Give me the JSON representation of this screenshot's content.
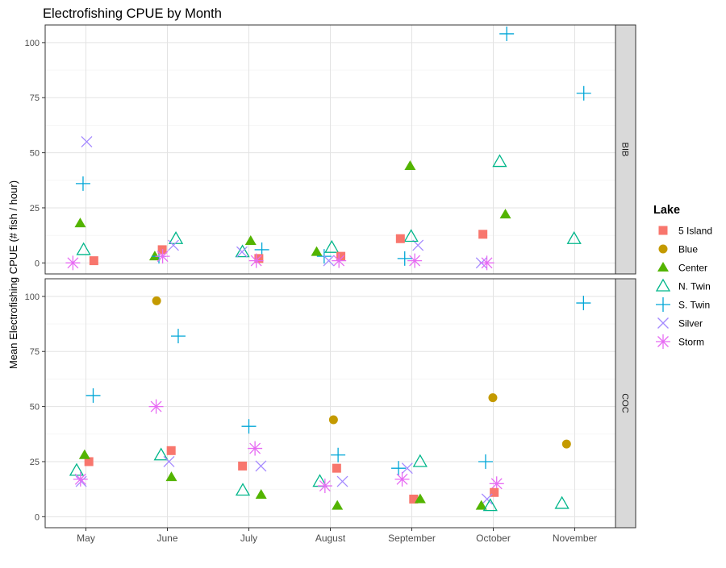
{
  "chart_data": {
    "type": "scatter",
    "title": "Electrofishing CPUE by Month",
    "xlabel": "",
    "ylabel": "Mean Electrofishing CPUE (# fish / hour)",
    "categories": [
      "May",
      "June",
      "July",
      "August",
      "September",
      "October",
      "November"
    ],
    "ylim": [
      -5,
      108
    ],
    "yticks": [
      0,
      25,
      50,
      75,
      100
    ],
    "grid": true,
    "legend": {
      "title": "Lake",
      "position": "right"
    },
    "facets": [
      "BIB",
      "COC"
    ],
    "series": [
      {
        "name": "5 Island",
        "shape": "square",
        "color": "#F8766D"
      },
      {
        "name": "Blue",
        "shape": "circle",
        "color": "#C49A00"
      },
      {
        "name": "Center",
        "shape": "triangle-filled",
        "color": "#53B400"
      },
      {
        "name": "N. Twin",
        "shape": "triangle-open",
        "color": "#00B68A"
      },
      {
        "name": "S. Twin",
        "shape": "plus",
        "color": "#00A6D7"
      },
      {
        "name": "Silver",
        "shape": "cross",
        "color": "#A58AFF"
      },
      {
        "name": "Storm",
        "shape": "asterisk",
        "color": "#E76BF3"
      }
    ],
    "points": {
      "BIB": [
        {
          "series": "Center",
          "x": "May",
          "y": 18
        },
        {
          "series": "N. Twin",
          "x": "May",
          "y": 6
        },
        {
          "series": "S. Twin",
          "x": "May",
          "y": 36
        },
        {
          "series": "Silver",
          "x": "May",
          "y": 55
        },
        {
          "series": "Storm",
          "x": "May",
          "y": 0
        },
        {
          "series": "5 Island",
          "x": "May",
          "y": 1
        },
        {
          "series": "N. Twin",
          "x": "June",
          "y": 11
        },
        {
          "series": "Center",
          "x": "June",
          "y": 3
        },
        {
          "series": "S. Twin",
          "x": "June",
          "y": 3
        },
        {
          "series": "Silver",
          "x": "June",
          "y": 8
        },
        {
          "series": "5 Island",
          "x": "June",
          "y": 6
        },
        {
          "series": "Storm",
          "x": "June",
          "y": 3
        },
        {
          "series": "Center",
          "x": "July",
          "y": 10
        },
        {
          "series": "N. Twin",
          "x": "July",
          "y": 5
        },
        {
          "series": "S. Twin",
          "x": "July",
          "y": 6
        },
        {
          "series": "5 Island",
          "x": "July",
          "y": 2
        },
        {
          "series": "Silver",
          "x": "July",
          "y": 5
        },
        {
          "series": "Storm",
          "x": "July",
          "y": 1
        },
        {
          "series": "N. Twin",
          "x": "August",
          "y": 7
        },
        {
          "series": "Center",
          "x": "August",
          "y": 5
        },
        {
          "series": "S. Twin",
          "x": "August",
          "y": 3
        },
        {
          "series": "5 Island",
          "x": "August",
          "y": 3
        },
        {
          "series": "Storm",
          "x": "August",
          "y": 1
        },
        {
          "series": "Silver",
          "x": "August",
          "y": 1
        },
        {
          "series": "Silver",
          "x": "September",
          "y": 8
        },
        {
          "series": "Storm",
          "x": "September",
          "y": 1
        },
        {
          "series": "S. Twin",
          "x": "September",
          "y": 2
        },
        {
          "series": "N. Twin",
          "x": "September",
          "y": 12
        },
        {
          "series": "5 Island",
          "x": "September",
          "y": 11
        },
        {
          "series": "Center",
          "x": "September",
          "y": 44
        },
        {
          "series": "N. Twin",
          "x": "October",
          "y": 46
        },
        {
          "series": "Center",
          "x": "October",
          "y": 22
        },
        {
          "series": "S. Twin",
          "x": "October",
          "y": 104
        },
        {
          "series": "5 Island",
          "x": "October",
          "y": 13
        },
        {
          "series": "Silver",
          "x": "October",
          "y": 0
        },
        {
          "series": "Storm",
          "x": "October",
          "y": 0
        },
        {
          "series": "N. Twin",
          "x": "November",
          "y": 11
        },
        {
          "series": "S. Twin",
          "x": "November",
          "y": 77
        }
      ],
      "COC": [
        {
          "series": "S. Twin",
          "x": "May",
          "y": 55
        },
        {
          "series": "5 Island",
          "x": "May",
          "y": 25
        },
        {
          "series": "Center",
          "x": "May",
          "y": 28
        },
        {
          "series": "N. Twin",
          "x": "May",
          "y": 21
        },
        {
          "series": "Silver",
          "x": "May",
          "y": 16
        },
        {
          "series": "Storm",
          "x": "May",
          "y": 17
        },
        {
          "series": "Blue",
          "x": "June",
          "y": 98
        },
        {
          "series": "S. Twin",
          "x": "June",
          "y": 82
        },
        {
          "series": "Storm",
          "x": "June",
          "y": 50
        },
        {
          "series": "N. Twin",
          "x": "June",
          "y": 28
        },
        {
          "series": "Silver",
          "x": "June",
          "y": 25
        },
        {
          "series": "5 Island",
          "x": "June",
          "y": 30
        },
        {
          "series": "Center",
          "x": "June",
          "y": 18
        },
        {
          "series": "S. Twin",
          "x": "July",
          "y": 41
        },
        {
          "series": "Storm",
          "x": "July",
          "y": 31
        },
        {
          "series": "Silver",
          "x": "July",
          "y": 23
        },
        {
          "series": "5 Island",
          "x": "July",
          "y": 23
        },
        {
          "series": "N. Twin",
          "x": "July",
          "y": 12
        },
        {
          "series": "Center",
          "x": "July",
          "y": 10
        },
        {
          "series": "Blue",
          "x": "August",
          "y": 44
        },
        {
          "series": "S. Twin",
          "x": "August",
          "y": 28
        },
        {
          "series": "5 Island",
          "x": "August",
          "y": 22
        },
        {
          "series": "N. Twin",
          "x": "August",
          "y": 16
        },
        {
          "series": "Silver",
          "x": "August",
          "y": 16
        },
        {
          "series": "Storm",
          "x": "August",
          "y": 14
        },
        {
          "series": "Center",
          "x": "August",
          "y": 5
        },
        {
          "series": "S. Twin",
          "x": "September",
          "y": 22
        },
        {
          "series": "Silver",
          "x": "September",
          "y": 22
        },
        {
          "series": "N. Twin",
          "x": "September",
          "y": 25
        },
        {
          "series": "Storm",
          "x": "September",
          "y": 17
        },
        {
          "series": "5 Island",
          "x": "September",
          "y": 8
        },
        {
          "series": "Center",
          "x": "September",
          "y": 8
        },
        {
          "series": "Blue",
          "x": "October",
          "y": 54
        },
        {
          "series": "S. Twin",
          "x": "October",
          "y": 25
        },
        {
          "series": "Storm",
          "x": "October",
          "y": 15
        },
        {
          "series": "5 Island",
          "x": "October",
          "y": 11
        },
        {
          "series": "Silver",
          "x": "October",
          "y": 8
        },
        {
          "series": "Center",
          "x": "October",
          "y": 5
        },
        {
          "series": "N. Twin",
          "x": "October",
          "y": 5
        },
        {
          "series": "S. Twin",
          "x": "November",
          "y": 97
        },
        {
          "series": "Blue",
          "x": "November",
          "y": 33
        },
        {
          "series": "N. Twin",
          "x": "November",
          "y": 6
        }
      ]
    }
  }
}
